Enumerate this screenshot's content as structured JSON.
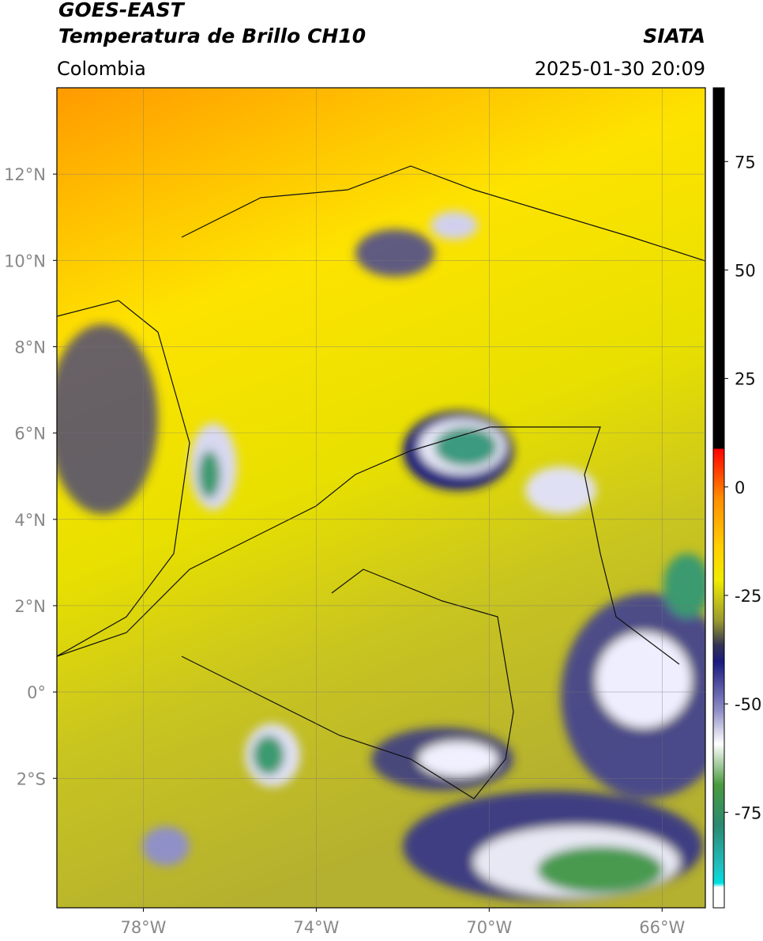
{
  "header": {
    "title": "GOES-EAST",
    "subtitle": "Temperatura de Brillo CH10",
    "source": "SIATA",
    "region": "Colombia",
    "datetime": "2025-01-30 20:09"
  },
  "map": {
    "xlim": [
      -80,
      -65
    ],
    "ylim": [
      -5,
      14
    ],
    "xticks": [
      {
        "value": -78,
        "label": "78°W"
      },
      {
        "value": -74,
        "label": "74°W"
      },
      {
        "value": -70,
        "label": "70°W"
      },
      {
        "value": -66,
        "label": "66°W"
      }
    ],
    "yticks": [
      {
        "value": 12,
        "label": "12°N"
      },
      {
        "value": 10,
        "label": "10°N"
      },
      {
        "value": 8,
        "label": "8°N"
      },
      {
        "value": 6,
        "label": "6°N"
      },
      {
        "value": 4,
        "label": "4°N"
      },
      {
        "value": 2,
        "label": "2°N"
      },
      {
        "value": 0,
        "label": "0°"
      },
      {
        "value": -2,
        "label": "2°S"
      }
    ]
  },
  "colorbar": {
    "lim": [
      -97,
      92
    ],
    "ticks": [
      75,
      50,
      25,
      0,
      -25,
      -50,
      -75
    ]
  }
}
